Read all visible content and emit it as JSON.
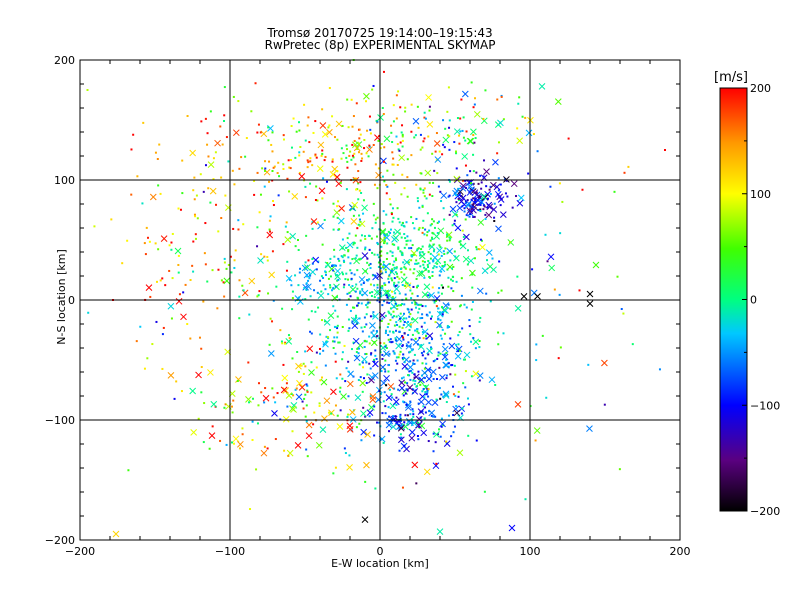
{
  "chart_data": {
    "type": "scatter",
    "title": "Tromsø 20170725 19:14:00–19:15:43",
    "subtitle": "RwPretec (8p) EXPERIMENTAL SKYMAP",
    "xlabel": "E-W location [km]",
    "ylabel": "N-S location [km]",
    "xlim": [
      -200,
      200
    ],
    "ylim": [
      -200,
      200
    ],
    "xticks": [
      "−200",
      "−100",
      "0",
      "100",
      "200"
    ],
    "yticks": [
      "200",
      "100",
      "0",
      "−100",
      "−200"
    ],
    "grid": true,
    "colorbar": {
      "unit_label": "[m/s]",
      "range": [
        -200,
        200
      ],
      "ticks": [
        "200",
        "100",
        "0",
        "−100",
        "−200"
      ],
      "colormap": "rainbow (black → purple → blue → cyan → green → yellow → red)"
    },
    "marker_types": [
      "dot",
      "x"
    ],
    "clusters": [
      {
        "x": 65,
        "y": 85,
        "sx": 12,
        "sy": 10,
        "n": 140,
        "vmean": -110,
        "vsd": 40,
        "xfrac": 0.35
      },
      {
        "x": 15,
        "y": 40,
        "sx": 28,
        "sy": 25,
        "n": 420,
        "vmean": 5,
        "vsd": 35,
        "xfrac": 0.1
      },
      {
        "x": 5,
        "y": -20,
        "sx": 30,
        "sy": 30,
        "n": 420,
        "vmean": -20,
        "vsd": 45,
        "xfrac": 0.12
      },
      {
        "x": 25,
        "y": -60,
        "sx": 20,
        "sy": 25,
        "n": 220,
        "vmean": -60,
        "vsd": 40,
        "xfrac": 0.2
      },
      {
        "x": 20,
        "y": -100,
        "sx": 18,
        "sy": 12,
        "n": 110,
        "vmean": -80,
        "vsd": 40,
        "xfrac": 0.4
      },
      {
        "x": -40,
        "y": 20,
        "sx": 12,
        "sy": 8,
        "n": 60,
        "vmean": -40,
        "vsd": 30,
        "xfrac": 0.3
      },
      {
        "x": -30,
        "y": 120,
        "sx": 35,
        "sy": 25,
        "n": 220,
        "vmean": 110,
        "vsd": 70,
        "xfrac": 0.15
      },
      {
        "x": -110,
        "y": 60,
        "sx": 35,
        "sy": 50,
        "n": 130,
        "vmean": 150,
        "vsd": 60,
        "xfrac": 0.1
      },
      {
        "x": -60,
        "y": -90,
        "sx": 30,
        "sy": 25,
        "n": 130,
        "vmean": 100,
        "vsd": 80,
        "xfrac": 0.3
      },
      {
        "x": 40,
        "y": 140,
        "sx": 30,
        "sy": 20,
        "n": 110,
        "vmean": 60,
        "vsd": 80,
        "xfrac": 0.1
      },
      {
        "x": 0,
        "y": 0,
        "sx": 90,
        "sy": 90,
        "n": 250,
        "vmean": 30,
        "vsd": 90,
        "xfrac": 0.15
      }
    ],
    "outliers": [
      {
        "x": 190,
        "y": 125,
        "v": 200,
        "m": "dot"
      },
      {
        "x": 163,
        "y": 106,
        "v": 180,
        "m": "dot"
      },
      {
        "x": 140,
        "y": 5,
        "v": -200,
        "m": "x"
      },
      {
        "x": 140,
        "y": -3,
        "v": -200,
        "m": "x"
      },
      {
        "x": 133,
        "y": 8,
        "v": 200,
        "m": "dot"
      },
      {
        "x": 105,
        "y": 3,
        "v": -200,
        "m": "x"
      },
      {
        "x": 96,
        "y": 3,
        "v": -200,
        "m": "x"
      },
      {
        "x": 108,
        "y": 178,
        "v": -10,
        "m": "x"
      },
      {
        "x": 114,
        "y": 36,
        "v": -100,
        "m": "x"
      },
      {
        "x": 88,
        "y": -190,
        "v": -100,
        "m": "x"
      },
      {
        "x": -176,
        "y": -195,
        "v": 120,
        "m": "x"
      },
      {
        "x": -178,
        "y": 0,
        "v": 200,
        "m": "dot"
      },
      {
        "x": -195,
        "y": 175,
        "v": 80,
        "m": "dot"
      },
      {
        "x": -10,
        "y": -183,
        "v": -200,
        "m": "x"
      },
      {
        "x": 40,
        "y": -193,
        "v": -10,
        "m": "x"
      },
      {
        "x": -112,
        "y": -113,
        "v": 200,
        "m": "x"
      },
      {
        "x": -131,
        "y": -14,
        "v": 200,
        "m": "x"
      },
      {
        "x": 92,
        "y": -87,
        "v": 180,
        "m": "x"
      },
      {
        "x": 97,
        "y": -166,
        "v": -10,
        "m": "dot"
      }
    ]
  }
}
